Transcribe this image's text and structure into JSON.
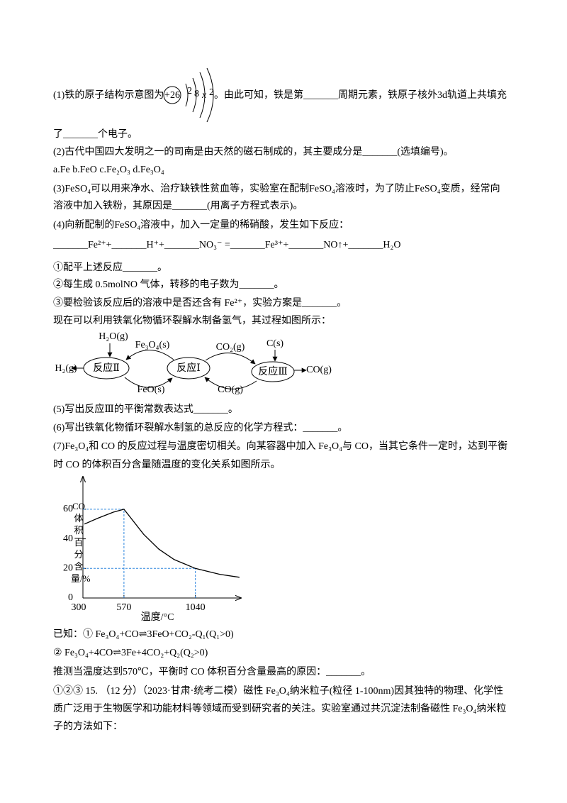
{
  "question1": {
    "before": "(1)铁的原子结构示意图为",
    "atom": {
      "nucleus": "+26",
      "shells": [
        "2",
        "8",
        "x",
        "2"
      ]
    },
    "after": "。由此可知，铁是第_______周期元素，铁原子核外3d轨道上共填充"
  },
  "lines": [
    "了_______个电子。",
    "(2)古代中国四大发明之一的司南是由天然的磁石制成的，其主要成分是_______(选填编号)。",
    "a.Fe b.FeO c.Fe₂O₃  d.Fe₃O₄",
    "(3)FeSO₄可以用来净水、治疗缺铁性贫血等，实验室在配制FeSO₄溶液时，为了防止FeSO₄变质，经常向",
    "溶液中加入铁粉，其原因是_______(用离子方程式表示)。",
    "(4)向新配制的FeSO₄溶液中，加入一定量的稀硝酸，发生如下反应：",
    "_______Fe²⁺+_______H⁺+_______NO₃⁻ =_______Fe³⁺+_______NO↑+_______H₂O",
    "①配平上述反应_______。",
    "②每生成 0.5molNO 气体，转移的电子数为_______。",
    "③要检验该反应后的溶液中是否还含有 Fe²⁺，实验方案是_______。",
    "现在可以利用铁氧化物循环裂解水制备氢气，其过程如图所示："
  ],
  "cycle_diagram": {
    "nodes": [
      "反应Ⅱ",
      "反应Ⅰ",
      "反应Ⅲ"
    ],
    "labels": [
      "H₂O(g)",
      "Fe₃O₄(s)",
      "CO₂(g)",
      "C(s)",
      "H₂(g)",
      "CO(g)",
      "FeO(s)",
      "CO(g)"
    ]
  },
  "lines_mid": [
    "(5)写出反应Ⅲ的平衡常数表达式_______。",
    "(6)写出铁氧化物循环裂解水制氢的总反应的化学方程式：_______。",
    "(7)Fe₃O₄和 CO 的反应过程与温度密切相关。向某容器中加入 Fe₃O₄与 CO，当其它条件一定时，达到平衡",
    "时 CO 的体积百分含量随温度的变化关系如图所示。"
  ],
  "chart_data": {
    "type": "line",
    "xlabel": "温度/°C",
    "ylabel": "CO体积百分含量/%",
    "x": [
      310,
      400,
      500,
      570,
      700,
      800,
      900,
      1040,
      1200,
      1330
    ],
    "values": [
      50,
      54,
      58,
      60,
      43,
      33,
      26,
      20,
      16,
      14
    ],
    "color": "#000000",
    "xlim": [
      300,
      1340
    ],
    "ylim": [
      0,
      82
    ],
    "xticks": [
      300,
      570,
      1040
    ],
    "yticks": [
      0,
      20,
      40,
      60
    ],
    "guides": [
      {
        "x": 570,
        "y": 60
      },
      {
        "x": 1040,
        "y": 20
      }
    ],
    "guide_color": "#2e86de"
  },
  "lines_after": [
    "已知：① Fe₃O₄+CO⇌3FeO+CO₂-Q₁(Q₁>0)",
    "② Fe₃O₄+4CO⇌3Fe+4CO₂+Q₂(Q₂>0)",
    "推测当温度达到570℃，平衡时 CO 体积百分含量最高的原因：_______。",
    "①②③ 15. （12 分）（2023·甘肃·统考二模）磁性 Fe₃O₄纳米粒子(粒径 1-100nm)因其独特的物理、化学性",
    "质广泛用于生物医学和功能材料等领域而受到研究者的关注。实验室通过共沉淀法制备磁性 Fe₃O₄纳米粒",
    "子的方法如下："
  ]
}
